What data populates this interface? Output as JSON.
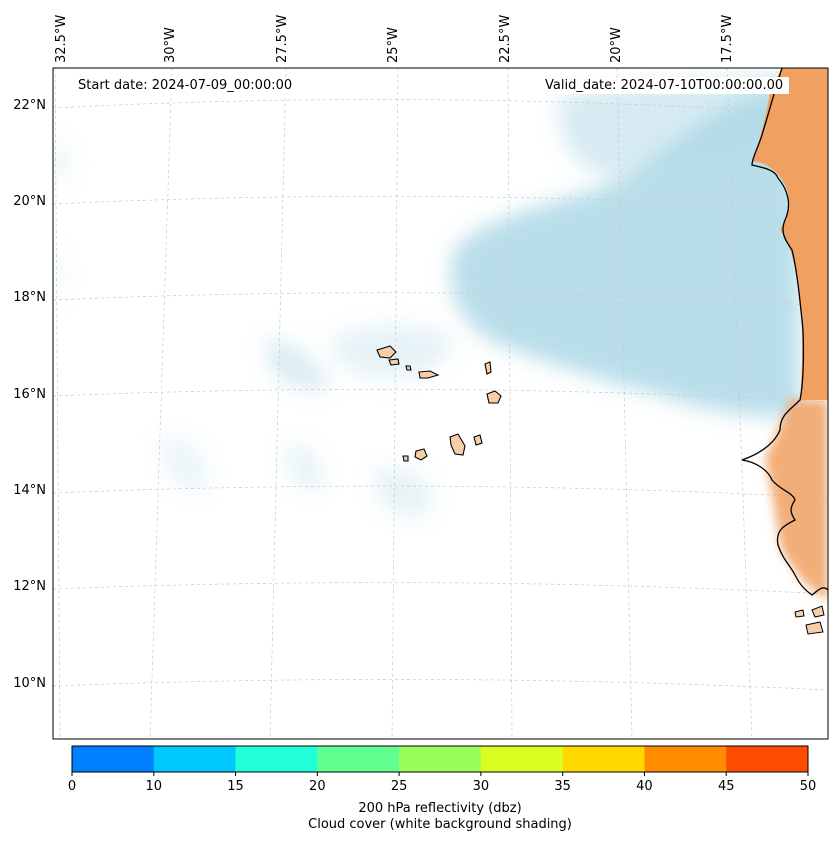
{
  "map": {
    "start_date": "Start date: 2024-07-09_00:00:00",
    "valid_date": "Valid_date: 2024-07-10T00:00:00.00",
    "longitude_labels": [
      "32.5°W",
      "30°W",
      "27.5°W",
      "25°W",
      "22.5°W",
      "20°W",
      "17.5°W"
    ],
    "latitude_labels": [
      "22°N",
      "20°N",
      "18°N",
      "16°N",
      "14°N",
      "12°N",
      "10°N"
    ],
    "colors": {
      "land": "#f0a060",
      "cloud": "#add8e6",
      "island": "#f7cfa6"
    }
  },
  "colorbar": {
    "ticks": [
      "0",
      "10",
      "15",
      "20",
      "25",
      "30",
      "35",
      "40",
      "45",
      "50"
    ],
    "colors": [
      "#0080ff",
      "#00c8ff",
      "#20ffd8",
      "#60ff90",
      "#98ff58",
      "#d8ff20",
      "#ffd800",
      "#ff8c00",
      "#ff4c00"
    ],
    "title_line1": "200 hPa reflectivity (dbz)",
    "title_line2": "Cloud cover (white background shading)"
  }
}
